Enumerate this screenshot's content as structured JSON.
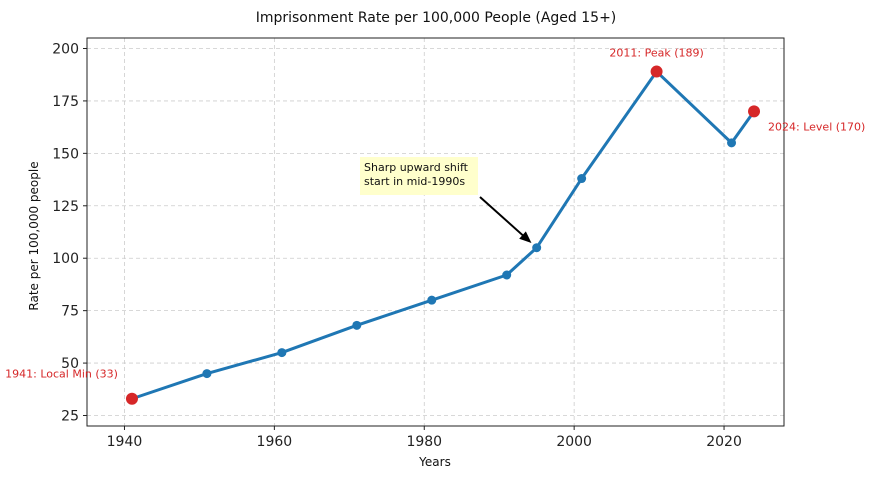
{
  "chart_data": {
    "type": "line",
    "title": "Imprisonment Rate per 100,000 People (Aged 15+)",
    "xlabel": "Years",
    "ylabel": "Rate per 100,000 people",
    "xlim": [
      1935,
      2028
    ],
    "ylim": [
      20,
      205
    ],
    "xticks": [
      1940,
      1960,
      1980,
      2000,
      2020
    ],
    "yticks": [
      25,
      50,
      75,
      100,
      125,
      150,
      175,
      200
    ],
    "grid": true,
    "line_color": "#1f77b4",
    "highlight_color": "#d62728",
    "series": [
      {
        "x": [
          1941,
          1951,
          1961,
          1971,
          1981,
          1991,
          1995,
          2001,
          2011,
          2021,
          2024
        ],
        "values": [
          33,
          45,
          55,
          68,
          80,
          92,
          105,
          138,
          189,
          155,
          170
        ]
      }
    ],
    "highlights": [
      {
        "x": 1941,
        "y": 33,
        "label": "1941: Local Min (33)"
      },
      {
        "x": 2011,
        "y": 189,
        "label": "2011: Peak (189)"
      },
      {
        "x": 2024,
        "y": 170,
        "label": "2024: Level (170)"
      }
    ],
    "annotation": {
      "lines": [
        "Sharp upward shift",
        "start in mid-1990s"
      ],
      "x": 1995,
      "y": 105
    }
  }
}
